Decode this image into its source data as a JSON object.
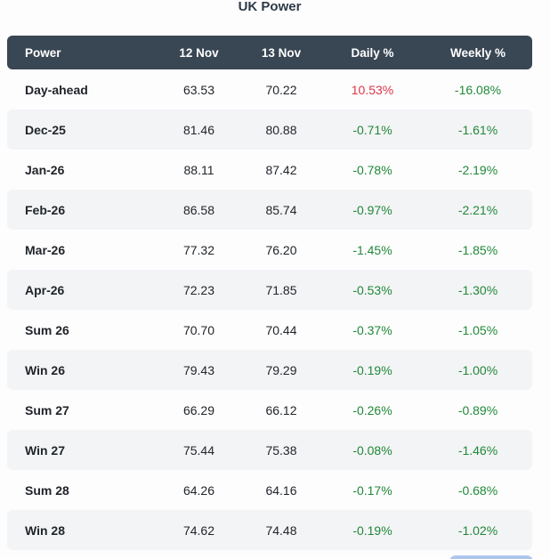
{
  "title": "UK Power",
  "colors": {
    "header_bg": "#394653",
    "positive": "#dc3545",
    "negative": "#218838",
    "stripe": "#f3f4f6",
    "title_text": "#2d3a48",
    "partial_button": "#adc6ee"
  },
  "chart_data": {
    "type": "table",
    "title": "UK Power",
    "columns": [
      "Power",
      "12 Nov",
      "13 Nov",
      "Daily %",
      "Weekly %"
    ],
    "rows": [
      [
        "Day-ahead",
        "63.53",
        "70.22",
        "10.53%",
        "-16.08%"
      ],
      [
        "Dec-25",
        "81.46",
        "80.88",
        "-0.71%",
        "-1.61%"
      ],
      [
        "Jan-26",
        "88.11",
        "87.42",
        "-0.78%",
        "-2.19%"
      ],
      [
        "Feb-26",
        "86.58",
        "85.74",
        "-0.97%",
        "-2.21%"
      ],
      [
        "Mar-26",
        "77.32",
        "76.20",
        "-1.45%",
        "-1.85%"
      ],
      [
        "Apr-26",
        "72.23",
        "71.85",
        "-0.53%",
        "-1.30%"
      ],
      [
        "Sum 26",
        "70.70",
        "70.44",
        "-0.37%",
        "-1.05%"
      ],
      [
        "Win 26",
        "79.43",
        "79.29",
        "-0.19%",
        "-1.00%"
      ],
      [
        "Sum 27",
        "66.29",
        "66.12",
        "-0.26%",
        "-0.89%"
      ],
      [
        "Win 27",
        "75.44",
        "75.38",
        "-0.08%",
        "-1.46%"
      ],
      [
        "Sum 28",
        "64.26",
        "64.16",
        "-0.17%",
        "-0.68%"
      ],
      [
        "Win 28",
        "74.62",
        "74.48",
        "-0.19%",
        "-1.02%"
      ]
    ]
  }
}
